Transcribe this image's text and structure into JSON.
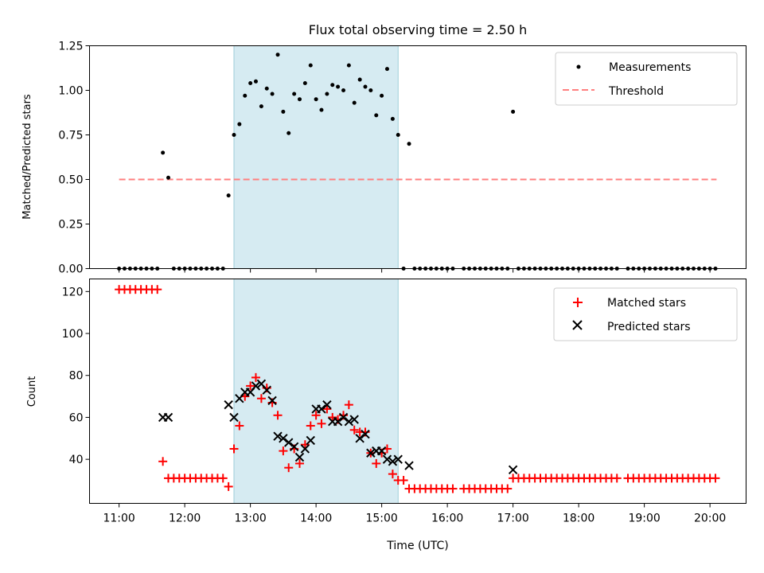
{
  "chart_data": [
    {
      "type": "scatter",
      "title": "Flux total observing time = 2.50 h",
      "ylabel": "Matched/Predicted stars",
      "xlabel": "",
      "x_units": "hours (UTC)",
      "xlim": [
        10.55,
        20.55
      ],
      "ylim": [
        0,
        1.25
      ],
      "yticks": [
        0,
        0.25,
        0.5,
        0.75,
        1.0,
        1.25
      ],
      "ytick_labels": [
        "0.00",
        "0.25",
        "0.50",
        "0.75",
        "1.00",
        "1.25"
      ],
      "shaded_span": [
        12.75,
        15.25
      ],
      "legend_position": "upper-right",
      "legend": [
        "Measurements",
        "Threshold"
      ],
      "threshold": {
        "name": "Threshold",
        "y": 0.5,
        "x": [
          11.0,
          20.1
        ],
        "color": "#ff7f7f",
        "style": "dashed"
      },
      "series": [
        {
          "name": "Measurements",
          "color": "#000000",
          "points": [
            [
              11.0,
              0
            ],
            [
              11.083,
              0
            ],
            [
              11.167,
              0
            ],
            [
              11.25,
              0
            ],
            [
              11.333,
              0
            ],
            [
              11.417,
              0
            ],
            [
              11.5,
              0
            ],
            [
              11.583,
              0
            ],
            [
              11.667,
              0.65
            ],
            [
              11.75,
              0.51
            ],
            [
              11.833,
              0
            ],
            [
              11.917,
              0
            ],
            [
              12.0,
              0
            ],
            [
              12.083,
              0
            ],
            [
              12.167,
              0
            ],
            [
              12.25,
              0
            ],
            [
              12.333,
              0
            ],
            [
              12.417,
              0
            ],
            [
              12.5,
              0
            ],
            [
              12.583,
              0
            ],
            [
              12.667,
              0.41
            ],
            [
              12.75,
              0.75
            ],
            [
              12.833,
              0.81
            ],
            [
              12.917,
              0.97
            ],
            [
              13.0,
              1.04
            ],
            [
              13.083,
              1.05
            ],
            [
              13.167,
              0.91
            ],
            [
              13.25,
              1.01
            ],
            [
              13.333,
              0.98
            ],
            [
              13.417,
              1.2
            ],
            [
              13.5,
              0.88
            ],
            [
              13.583,
              0.76
            ],
            [
              13.667,
              0.98
            ],
            [
              13.75,
              0.95
            ],
            [
              13.833,
              1.04
            ],
            [
              13.917,
              1.14
            ],
            [
              14.0,
              0.95
            ],
            [
              14.083,
              0.89
            ],
            [
              14.167,
              0.98
            ],
            [
              14.25,
              1.03
            ],
            [
              14.333,
              1.02
            ],
            [
              14.417,
              1.0
            ],
            [
              14.5,
              1.14
            ],
            [
              14.583,
              0.93
            ],
            [
              14.667,
              1.06
            ],
            [
              14.75,
              1.02
            ],
            [
              14.833,
              1.0
            ],
            [
              14.917,
              0.86
            ],
            [
              15.0,
              0.97
            ],
            [
              15.083,
              1.12
            ],
            [
              15.167,
              0.84
            ],
            [
              15.25,
              0.75
            ],
            [
              15.333,
              0
            ],
            [
              15.417,
              0.7
            ],
            [
              15.5,
              0
            ],
            [
              15.583,
              0
            ],
            [
              15.667,
              0
            ],
            [
              15.75,
              0
            ],
            [
              15.833,
              0
            ],
            [
              15.917,
              0
            ],
            [
              16.0,
              0
            ],
            [
              16.083,
              0
            ],
            [
              16.25,
              0
            ],
            [
              16.333,
              0
            ],
            [
              16.417,
              0
            ],
            [
              16.5,
              0
            ],
            [
              16.583,
              0
            ],
            [
              16.667,
              0
            ],
            [
              16.75,
              0
            ],
            [
              16.833,
              0
            ],
            [
              16.917,
              0
            ],
            [
              17.0,
              0.88
            ],
            [
              17.083,
              0
            ],
            [
              17.167,
              0
            ],
            [
              17.25,
              0
            ],
            [
              17.333,
              0
            ],
            [
              17.417,
              0
            ],
            [
              17.5,
              0
            ],
            [
              17.583,
              0
            ],
            [
              17.667,
              0
            ],
            [
              17.75,
              0
            ],
            [
              17.833,
              0
            ],
            [
              17.917,
              0
            ],
            [
              18.0,
              0
            ],
            [
              18.083,
              0
            ],
            [
              18.167,
              0
            ],
            [
              18.25,
              0
            ],
            [
              18.333,
              0
            ],
            [
              18.417,
              0
            ],
            [
              18.5,
              0
            ],
            [
              18.583,
              0
            ],
            [
              18.75,
              0
            ],
            [
              18.833,
              0
            ],
            [
              18.917,
              0
            ],
            [
              19.0,
              0
            ],
            [
              19.083,
              0
            ],
            [
              19.167,
              0
            ],
            [
              19.25,
              0
            ],
            [
              19.333,
              0
            ],
            [
              19.417,
              0
            ],
            [
              19.5,
              0
            ],
            [
              19.583,
              0
            ],
            [
              19.667,
              0
            ],
            [
              19.75,
              0
            ],
            [
              19.833,
              0
            ],
            [
              19.917,
              0
            ],
            [
              20.0,
              0
            ],
            [
              20.083,
              0
            ]
          ]
        }
      ]
    },
    {
      "type": "scatter",
      "title": "",
      "ylabel": "Count",
      "xlabel": "Time (UTC)",
      "x_units": "hours (UTC)",
      "xlim": [
        10.55,
        20.55
      ],
      "ylim": [
        19,
        126
      ],
      "yticks": [
        40,
        60,
        80,
        100,
        120
      ],
      "ytick_labels": [
        "40",
        "60",
        "80",
        "100",
        "120"
      ],
      "xticks": [
        11,
        12,
        13,
        14,
        15,
        16,
        17,
        18,
        19,
        20
      ],
      "xtick_labels": [
        "11:00",
        "12:00",
        "13:00",
        "14:00",
        "15:00",
        "16:00",
        "17:00",
        "18:00",
        "19:00",
        "20:00"
      ],
      "shaded_span": [
        12.75,
        15.25
      ],
      "legend_position": "upper-right",
      "legend": [
        "Matched stars",
        "Predicted stars"
      ],
      "series": [
        {
          "name": "Matched stars",
          "marker": "plus",
          "color": "#ff0000",
          "points": [
            [
              11.0,
              121
            ],
            [
              11.083,
              121
            ],
            [
              11.167,
              121
            ],
            [
              11.25,
              121
            ],
            [
              11.333,
              121
            ],
            [
              11.417,
              121
            ],
            [
              11.5,
              121
            ],
            [
              11.583,
              121
            ],
            [
              11.667,
              39
            ],
            [
              11.75,
              31
            ],
            [
              11.833,
              31
            ],
            [
              11.917,
              31
            ],
            [
              12.0,
              31
            ],
            [
              12.083,
              31
            ],
            [
              12.167,
              31
            ],
            [
              12.25,
              31
            ],
            [
              12.333,
              31
            ],
            [
              12.417,
              31
            ],
            [
              12.5,
              31
            ],
            [
              12.583,
              31
            ],
            [
              12.667,
              27
            ],
            [
              12.75,
              45
            ],
            [
              12.833,
              56
            ],
            [
              12.917,
              70
            ],
            [
              13.0,
              75
            ],
            [
              13.083,
              79
            ],
            [
              13.167,
              69
            ],
            [
              13.25,
              74
            ],
            [
              13.333,
              67
            ],
            [
              13.417,
              61
            ],
            [
              13.5,
              44
            ],
            [
              13.583,
              36
            ],
            [
              13.667,
              45
            ],
            [
              13.75,
              38
            ],
            [
              13.833,
              47
            ],
            [
              13.917,
              56
            ],
            [
              14.0,
              61
            ],
            [
              14.083,
              57
            ],
            [
              14.167,
              64
            ],
            [
              14.25,
              60
            ],
            [
              14.333,
              59
            ],
            [
              14.417,
              61
            ],
            [
              14.5,
              66
            ],
            [
              14.583,
              54
            ],
            [
              14.667,
              53
            ],
            [
              14.75,
              53
            ],
            [
              14.833,
              43
            ],
            [
              14.917,
              38
            ],
            [
              15.0,
              43
            ],
            [
              15.083,
              45
            ],
            [
              15.167,
              33
            ],
            [
              15.25,
              30
            ],
            [
              15.333,
              30
            ],
            [
              15.417,
              26
            ],
            [
              15.5,
              26
            ],
            [
              15.583,
              26
            ],
            [
              15.667,
              26
            ],
            [
              15.75,
              26
            ],
            [
              15.833,
              26
            ],
            [
              15.917,
              26
            ],
            [
              16.0,
              26
            ],
            [
              16.083,
              26
            ],
            [
              16.25,
              26
            ],
            [
              16.333,
              26
            ],
            [
              16.417,
              26
            ],
            [
              16.5,
              26
            ],
            [
              16.583,
              26
            ],
            [
              16.667,
              26
            ],
            [
              16.75,
              26
            ],
            [
              16.833,
              26
            ],
            [
              16.917,
              26
            ],
            [
              17.0,
              31
            ],
            [
              17.083,
              31
            ],
            [
              17.167,
              31
            ],
            [
              17.25,
              31
            ],
            [
              17.333,
              31
            ],
            [
              17.417,
              31
            ],
            [
              17.5,
              31
            ],
            [
              17.583,
              31
            ],
            [
              17.667,
              31
            ],
            [
              17.75,
              31
            ],
            [
              17.833,
              31
            ],
            [
              17.917,
              31
            ],
            [
              18.0,
              31
            ],
            [
              18.083,
              31
            ],
            [
              18.167,
              31
            ],
            [
              18.25,
              31
            ],
            [
              18.333,
              31
            ],
            [
              18.417,
              31
            ],
            [
              18.5,
              31
            ],
            [
              18.583,
              31
            ],
            [
              18.75,
              31
            ],
            [
              18.833,
              31
            ],
            [
              18.917,
              31
            ],
            [
              19.0,
              31
            ],
            [
              19.083,
              31
            ],
            [
              19.167,
              31
            ],
            [
              19.25,
              31
            ],
            [
              19.333,
              31
            ],
            [
              19.417,
              31
            ],
            [
              19.5,
              31
            ],
            [
              19.583,
              31
            ],
            [
              19.667,
              31
            ],
            [
              19.75,
              31
            ],
            [
              19.833,
              31
            ],
            [
              19.917,
              31
            ],
            [
              20.0,
              31
            ],
            [
              20.083,
              31
            ]
          ]
        },
        {
          "name": "Predicted stars",
          "marker": "x",
          "color": "#000000",
          "points": [
            [
              11.667,
              60
            ],
            [
              11.75,
              60
            ],
            [
              12.667,
              66
            ],
            [
              12.75,
              60
            ],
            [
              12.833,
              69
            ],
            [
              12.917,
              72
            ],
            [
              13.0,
              72
            ],
            [
              13.083,
              75
            ],
            [
              13.167,
              76
            ],
            [
              13.25,
              73
            ],
            [
              13.333,
              68
            ],
            [
              13.417,
              51
            ],
            [
              13.5,
              50
            ],
            [
              13.583,
              48
            ],
            [
              13.667,
              46
            ],
            [
              13.75,
              41
            ],
            [
              13.833,
              45
            ],
            [
              13.917,
              49
            ],
            [
              14.0,
              64
            ],
            [
              14.083,
              64
            ],
            [
              14.167,
              66
            ],
            [
              14.25,
              58
            ],
            [
              14.333,
              58
            ],
            [
              14.417,
              60
            ],
            [
              14.5,
              58
            ],
            [
              14.583,
              59
            ],
            [
              14.667,
              50
            ],
            [
              14.75,
              52
            ],
            [
              14.833,
              43
            ],
            [
              14.917,
              44
            ],
            [
              15.0,
              44
            ],
            [
              15.083,
              40
            ],
            [
              15.167,
              39
            ],
            [
              15.25,
              40
            ],
            [
              15.417,
              37
            ],
            [
              17.0,
              35
            ]
          ]
        }
      ]
    }
  ]
}
